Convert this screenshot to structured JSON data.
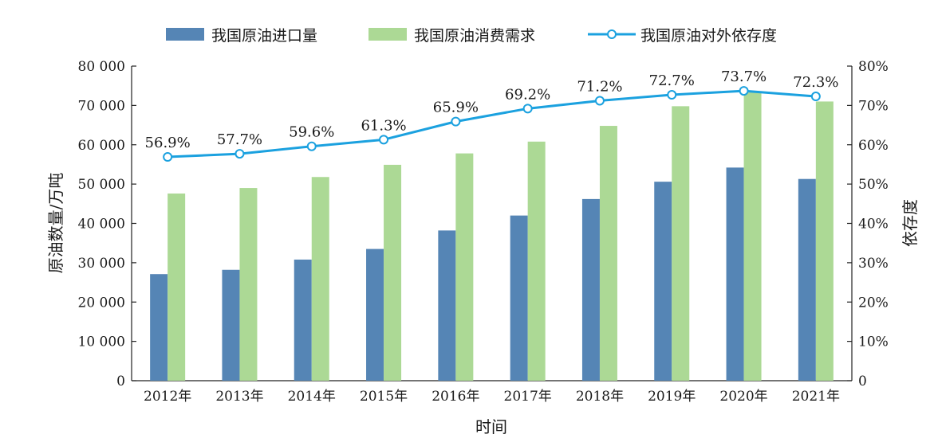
{
  "chart_data": {
    "type": "bar",
    "categories": [
      "2012年",
      "2013年",
      "2014年",
      "2015年",
      "2016年",
      "2017年",
      "2018年",
      "2019年",
      "2020年",
      "2021年"
    ],
    "series": [
      {
        "name": "我国原油进口量",
        "type": "bar",
        "axis": "left",
        "color": "#5585b5",
        "values": [
          27100,
          28200,
          30800,
          33500,
          38200,
          42000,
          46200,
          50600,
          54200,
          51300
        ]
      },
      {
        "name": "我国原油消费需求",
        "type": "bar",
        "axis": "left",
        "color": "#acd995",
        "values": [
          47600,
          49000,
          51800,
          54900,
          57800,
          60800,
          64800,
          69800,
          73600,
          71000
        ]
      },
      {
        "name": "我国原油对外依存度",
        "type": "line",
        "axis": "right",
        "color": "#1ba1df",
        "values": [
          56.9,
          57.7,
          59.6,
          61.3,
          65.9,
          69.2,
          71.2,
          72.7,
          73.7,
          72.3
        ],
        "labels": [
          "56.9%",
          "57.7%",
          "59.6%",
          "61.3%",
          "65.9%",
          "69.2%",
          "71.2%",
          "72.7%",
          "73.7%",
          "72.3%"
        ]
      }
    ],
    "xlabel": "时间",
    "ylabel": "原油数量/万吨",
    "y2label": "依存度",
    "ylim": [
      0,
      80000
    ],
    "y2lim": [
      0,
      80
    ],
    "yticks": [
      "0",
      "10 000",
      "20 000",
      "30 000",
      "40 000",
      "50 000",
      "60 000",
      "70 000",
      "80 000"
    ],
    "y2ticks": [
      "0",
      "10%",
      "20%",
      "30%",
      "40%",
      "50%",
      "60%",
      "70%",
      "80%"
    ],
    "grid": false,
    "legend_position": "top-center"
  }
}
